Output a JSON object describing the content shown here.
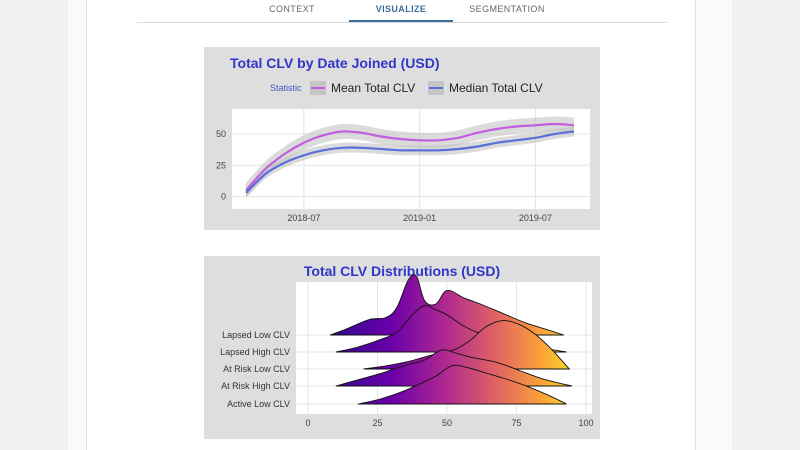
{
  "tabs": [
    {
      "label": "CONTEXT",
      "active": false
    },
    {
      "label": "VISUALIZE",
      "active": true
    },
    {
      "label": "SEGMENTATION",
      "active": false
    }
  ],
  "colors": {
    "mean_line": "#c25ee0",
    "median_line": "#5a6fd8",
    "title": "#2f36c9",
    "band": "#bdbdbd"
  },
  "chart_data": [
    {
      "type": "line",
      "title": "Total CLV by Date Joined (USD)",
      "legend_title": "Statistic",
      "legend_position": "top",
      "x": [
        "2018-04",
        "2018-05",
        "2018-06",
        "2018-07",
        "2018-08",
        "2018-09",
        "2018-10",
        "2018-11",
        "2018-12",
        "2019-01",
        "2019-02",
        "2019-03",
        "2019-04",
        "2019-05",
        "2019-06",
        "2019-07",
        "2019-08",
        "2019-09"
      ],
      "series": [
        {
          "name": "Mean Total CLV",
          "values": [
            5,
            22,
            34,
            43,
            49,
            52,
            51,
            48,
            46,
            45,
            45,
            47,
            51,
            54,
            56,
            57,
            58,
            57
          ]
        },
        {
          "name": "Median Total CLV",
          "values": [
            3,
            18,
            27,
            33,
            37,
            39,
            39,
            38,
            37,
            37,
            37,
            38,
            40,
            43,
            45,
            47,
            50,
            52
          ]
        }
      ],
      "x_ticks": [
        "2018-07",
        "2019-01",
        "2019-07"
      ],
      "y_ticks": [
        0,
        25,
        50
      ],
      "ylim": [
        -10,
        70
      ],
      "grid": true
    },
    {
      "type": "ridgeline",
      "title": "Total CLV Distributions (USD)",
      "categories": [
        "Lapsed Low CLV",
        "Lapsed High CLV",
        "At Risk Low CLV",
        "At Risk High CLV",
        "Active Low CLV"
      ],
      "x_ticks": [
        0,
        25,
        50,
        75,
        100
      ],
      "xlim": [
        0,
        100
      ],
      "grid": true,
      "densities": [
        {
          "name": "Lapsed Low CLV",
          "range": [
            8,
            92
          ],
          "points": [
            [
              8,
              0
            ],
            [
              14,
              0.1
            ],
            [
              22,
              0.25
            ],
            [
              28,
              0.28
            ],
            [
              32,
              0.45
            ],
            [
              36,
              0.88
            ],
            [
              39,
              0.95
            ],
            [
              42,
              0.55
            ],
            [
              46,
              0.5
            ],
            [
              50,
              0.72
            ],
            [
              56,
              0.6
            ],
            [
              62,
              0.5
            ],
            [
              70,
              0.35
            ],
            [
              78,
              0.2
            ],
            [
              85,
              0.1
            ],
            [
              92,
              0
            ]
          ]
        },
        {
          "name": "Lapsed High CLV",
          "range": [
            10,
            93
          ],
          "points": [
            [
              10,
              0
            ],
            [
              18,
              0.08
            ],
            [
              26,
              0.2
            ],
            [
              32,
              0.32
            ],
            [
              38,
              0.62
            ],
            [
              42,
              0.75
            ],
            [
              46,
              0.68
            ],
            [
              50,
              0.6
            ],
            [
              56,
              0.42
            ],
            [
              62,
              0.3
            ],
            [
              70,
              0.22
            ],
            [
              78,
              0.12
            ],
            [
              86,
              0.05
            ],
            [
              93,
              0
            ]
          ]
        },
        {
          "name": "At Risk Low CLV",
          "range": [
            20,
            94
          ],
          "points": [
            [
              20,
              0
            ],
            [
              28,
              0.05
            ],
            [
              36,
              0.12
            ],
            [
              44,
              0.22
            ],
            [
              52,
              0.3
            ],
            [
              58,
              0.45
            ],
            [
              64,
              0.68
            ],
            [
              70,
              0.78
            ],
            [
              76,
              0.72
            ],
            [
              82,
              0.55
            ],
            [
              88,
              0.3
            ],
            [
              94,
              0
            ]
          ]
        },
        {
          "name": "At Risk High CLV",
          "range": [
            10,
            95
          ],
          "points": [
            [
              10,
              0
            ],
            [
              18,
              0.1
            ],
            [
              26,
              0.2
            ],
            [
              34,
              0.32
            ],
            [
              42,
              0.42
            ],
            [
              48,
              0.58
            ],
            [
              54,
              0.52
            ],
            [
              60,
              0.45
            ],
            [
              68,
              0.38
            ],
            [
              76,
              0.25
            ],
            [
              84,
              0.12
            ],
            [
              90,
              0.05
            ],
            [
              95,
              0
            ]
          ]
        },
        {
          "name": "Active Low CLV",
          "range": [
            18,
            93
          ],
          "points": [
            [
              18,
              0
            ],
            [
              26,
              0.08
            ],
            [
              34,
              0.2
            ],
            [
              40,
              0.32
            ],
            [
              46,
              0.45
            ],
            [
              52,
              0.62
            ],
            [
              58,
              0.58
            ],
            [
              64,
              0.5
            ],
            [
              70,
              0.42
            ],
            [
              78,
              0.3
            ],
            [
              86,
              0.15
            ],
            [
              93,
              0
            ]
          ]
        }
      ]
    }
  ]
}
